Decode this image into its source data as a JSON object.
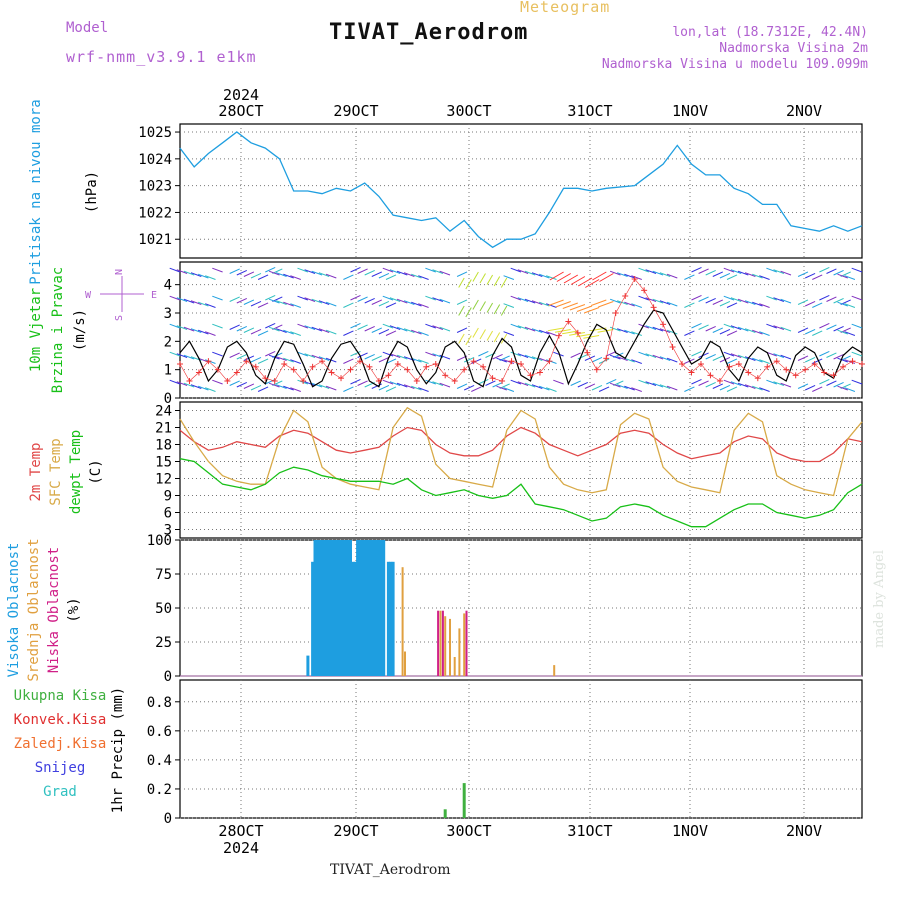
{
  "header": {
    "title": "TIVAT_Aerodrom",
    "subtitle": "Meteogram",
    "model_label": "Model",
    "model_name": "wrf-nmm_v3.9.1 e1km",
    "location": "lon,lat (18.7312E, 42.4N)",
    "elevation": "Nadmorska Visina 2m",
    "model_elevation": "Nadmorska Visina u modelu 109.099m"
  },
  "footer": {
    "station": "TIVAT_Aerodrom",
    "credit": "made by Angel"
  },
  "colors": {
    "pressure": "#1e9ee0",
    "wind_speed": "#000000",
    "gust": "#ee3333",
    "t2m": "#e04848",
    "sfc": "#d8aa48",
    "dewpt": "#18c018",
    "high_cloud": "#1e9ee0",
    "mid_cloud": "#e0a040",
    "low_cloud": "#d02088",
    "precip_total": "#40b040",
    "precip_conv": "#e03030"
  },
  "chart_data": [
    {
      "type": "line",
      "name": "pressure",
      "ylabel_lines": [
        "Pritisak na nivou mora",
        "(hPa)"
      ],
      "x_day_ticks": [
        "28OCT",
        "29OCT",
        "30OCT",
        "31OCT",
        "1NOV",
        "2NOV"
      ],
      "year": "2024",
      "yticks": [
        1021,
        1022,
        1023,
        1024,
        1025
      ],
      "ylim": [
        1020.3,
        1025.3
      ],
      "xlim": [
        0,
        144
      ],
      "x": [
        0,
        3,
        6,
        9,
        12,
        15,
        18,
        21,
        24,
        27,
        30,
        33,
        36,
        39,
        42,
        45,
        48,
        51,
        54,
        57,
        60,
        63,
        66,
        69,
        72,
        75,
        78,
        81,
        84,
        87,
        90,
        96,
        102,
        105,
        108,
        111,
        114,
        117,
        120,
        123,
        126,
        129,
        132,
        135,
        138,
        141,
        144
      ],
      "values": [
        1024.4,
        1023.7,
        1024.2,
        1024.6,
        1025.0,
        1024.6,
        1024.4,
        1024.0,
        1022.8,
        1022.8,
        1022.7,
        1022.9,
        1022.8,
        1023.1,
        1022.6,
        1021.9,
        1021.8,
        1021.7,
        1021.8,
        1021.3,
        1021.7,
        1021.1,
        1020.7,
        1021.0,
        1021.0,
        1021.2,
        1022.0,
        1022.9,
        1022.9,
        1022.8,
        1022.9,
        1023.0,
        1023.8,
        1024.5,
        1023.8,
        1023.4,
        1023.4,
        1022.9,
        1022.7,
        1022.3,
        1022.3,
        1021.5,
        1021.4,
        1021.3,
        1021.5,
        1021.3,
        1021.5
      ]
    },
    {
      "type": "line",
      "name": "wind",
      "ylabel_lines": [
        "10m Vjetar",
        "Brzina i Pravac",
        "(m/s)"
      ],
      "compass": {
        "n": "N",
        "s": "S",
        "w": "W",
        "e": "E"
      },
      "yticks": [
        0,
        1,
        2,
        3,
        4
      ],
      "ylim": [
        0,
        4.8
      ],
      "xlim": [
        0,
        144
      ],
      "x": [
        0,
        2,
        4,
        6,
        8,
        10,
        12,
        14,
        16,
        18,
        20,
        22,
        24,
        26,
        28,
        30,
        32,
        34,
        36,
        38,
        40,
        42,
        44,
        46,
        48,
        50,
        52,
        54,
        56,
        58,
        60,
        62,
        64,
        66,
        68,
        70,
        72,
        74,
        76,
        78,
        80,
        82,
        84,
        86,
        88,
        90,
        92,
        94,
        96,
        98,
        100,
        102,
        104,
        106,
        108,
        110,
        112,
        114,
        116,
        118,
        120,
        122,
        124,
        126,
        128,
        130,
        132,
        134,
        136,
        138,
        140,
        142,
        144
      ],
      "series": [
        {
          "name": "speed",
          "values": [
            1.6,
            2.0,
            1.4,
            0.6,
            1.0,
            1.8,
            2.0,
            1.6,
            0.8,
            0.5,
            1.4,
            2.0,
            1.9,
            1.2,
            0.4,
            0.6,
            1.4,
            1.9,
            2.0,
            1.5,
            0.6,
            0.4,
            1.4,
            2.0,
            1.8,
            1.0,
            0.5,
            0.9,
            1.8,
            2.0,
            1.6,
            0.6,
            0.4,
            1.5,
            2.1,
            1.8,
            0.8,
            0.6,
            1.6,
            2.2,
            1.6,
            0.5,
            1.2,
            2.0,
            2.6,
            2.4,
            1.6,
            1.4,
            2.0,
            2.6,
            3.1,
            3.0,
            2.4,
            1.8,
            1.2,
            1.4,
            2.0,
            1.8,
            1.0,
            0.6,
            1.4,
            1.8,
            1.6,
            0.8,
            0.6,
            1.5,
            1.8,
            1.6,
            0.9,
            0.7,
            1.5,
            1.8,
            1.6
          ]
        },
        {
          "name": "gust",
          "values": [
            1.2,
            0.6,
            0.9,
            1.3,
            1.0,
            0.6,
            0.9,
            1.3,
            1.1,
            0.7,
            0.6,
            1.2,
            1.0,
            0.6,
            1.1,
            1.3,
            0.9,
            0.7,
            1.0,
            1.3,
            1.1,
            0.6,
            0.8,
            1.2,
            1.0,
            0.6,
            1.1,
            1.2,
            0.8,
            0.6,
            1.0,
            1.3,
            1.1,
            0.7,
            0.6,
            1.3,
            1.2,
            0.8,
            0.9,
            1.3,
            2.2,
            2.7,
            2.3,
            1.6,
            1.0,
            1.4,
            3.0,
            3.6,
            4.2,
            3.8,
            3.2,
            2.6,
            1.8,
            1.2,
            0.9,
            1.2,
            0.8,
            0.6,
            1.1,
            1.2,
            0.9,
            0.7,
            1.1,
            1.3,
            1.0,
            0.8,
            1.0,
            1.2,
            0.9,
            0.8,
            1.1,
            1.3,
            1.2
          ]
        }
      ]
    },
    {
      "type": "line",
      "name": "temperature",
      "ylabel_lines": [
        "2m Temp",
        "SFC Temp",
        "dewpt Temp",
        "(C)"
      ],
      "yticks": [
        3,
        6,
        9,
        12,
        15,
        18,
        21,
        24
      ],
      "ylim": [
        1.5,
        25.5
      ],
      "xlim": [
        0,
        144
      ],
      "x": [
        0,
        3,
        6,
        9,
        12,
        15,
        18,
        21,
        24,
        27,
        30,
        33,
        36,
        39,
        42,
        45,
        48,
        51,
        54,
        57,
        60,
        63,
        66,
        69,
        72,
        75,
        78,
        81,
        84,
        87,
        90,
        93,
        96,
        99,
        102,
        105,
        108,
        111,
        114,
        117,
        120,
        123,
        126,
        129,
        132,
        135,
        138,
        141,
        144
      ],
      "series": [
        {
          "name": "2m",
          "values": [
            20.5,
            18.5,
            17.0,
            17.5,
            18.5,
            18.0,
            17.5,
            19.5,
            20.5,
            20.0,
            18.5,
            17.0,
            16.5,
            17.0,
            17.5,
            19.5,
            21.0,
            20.5,
            18.0,
            16.5,
            16.0,
            16.0,
            17.0,
            19.5,
            21.0,
            20.0,
            18.0,
            17.0,
            16.0,
            17.0,
            18.0,
            20.0,
            20.5,
            20.0,
            18.0,
            16.5,
            15.5,
            16.0,
            16.5,
            18.5,
            19.5,
            19.0,
            16.5,
            15.5,
            15.0,
            15.0,
            16.5,
            19.0,
            18.5
          ]
        },
        {
          "name": "sfc",
          "values": [
            22.5,
            18.5,
            15.0,
            12.5,
            11.5,
            11.0,
            11.0,
            19.0,
            24.0,
            22.0,
            14.0,
            12.0,
            11.0,
            10.5,
            10.0,
            21.0,
            24.5,
            23.0,
            14.5,
            12.0,
            11.5,
            11.0,
            10.5,
            20.5,
            24.0,
            22.5,
            14.0,
            11.0,
            10.0,
            9.5,
            10.0,
            21.5,
            23.5,
            22.5,
            14.0,
            11.5,
            10.5,
            10.0,
            9.5,
            20.5,
            23.5,
            22.0,
            12.5,
            11.0,
            10.0,
            9.5,
            9.0,
            19.0,
            22.0
          ]
        },
        {
          "name": "dewpt",
          "values": [
            15.5,
            15.0,
            13.0,
            11.0,
            10.5,
            10.0,
            11.0,
            13.0,
            14.0,
            13.5,
            12.5,
            12.0,
            11.5,
            11.5,
            11.5,
            11.0,
            12.0,
            10.0,
            9.0,
            9.5,
            10.0,
            9.0,
            8.5,
            9.0,
            11.0,
            7.5,
            7.0,
            6.5,
            5.5,
            4.5,
            5.0,
            7.0,
            7.5,
            7.0,
            5.5,
            4.5,
            3.5,
            3.5,
            5.0,
            6.5,
            7.5,
            7.5,
            6.0,
            5.5,
            5.0,
            5.5,
            6.5,
            9.5,
            11.0
          ]
        }
      ]
    },
    {
      "type": "bar",
      "name": "cloud_cover",
      "ylabel_lines": [
        "Visoka Oblacnost",
        "Srednja Oblacnost",
        "Niska Oblacnost",
        "(%)"
      ],
      "yticks": [
        0,
        25,
        50,
        75,
        100
      ],
      "ylim": [
        0,
        100
      ],
      "xlim": [
        0,
        144
      ],
      "series": [
        {
          "name": "high",
          "x": [
            27,
            28,
            28.5,
            29,
            29.5,
            30,
            30.5,
            31,
            31.5,
            32,
            32.5,
            33,
            33.5,
            34,
            34.5,
            35,
            35.5,
            36,
            36.5,
            37,
            37.5,
            38,
            38.5,
            39,
            39.5,
            40,
            40.5,
            41,
            41.5,
            42,
            42.5,
            43,
            44,
            44.5,
            45
          ],
          "values": [
            15,
            84,
            100,
            100,
            100,
            100,
            100,
            100,
            100,
            100,
            100,
            100,
            100,
            100,
            100,
            100,
            100,
            100,
            84,
            84,
            100,
            100,
            100,
            100,
            100,
            100,
            100,
            100,
            100,
            100,
            100,
            100,
            84,
            84,
            84
          ]
        },
        {
          "name": "mid",
          "x": [
            47,
            47.5,
            55,
            56,
            57,
            58,
            59,
            60,
            79
          ],
          "values": [
            80,
            18,
            48,
            44,
            42,
            14,
            35,
            46,
            8
          ]
        },
        {
          "name": "low",
          "x": [
            54.5,
            55.5,
            60.5
          ],
          "values": [
            48,
            48,
            48
          ]
        }
      ]
    },
    {
      "type": "bar",
      "name": "precipitation",
      "ylabel_lines": [
        "1hr Precip (mm)"
      ],
      "legend": [
        "Ukupna Kisa",
        "Konvek.Kisa",
        "Zaledj.Kisa",
        "Snijeg",
        "Grad"
      ],
      "legend_colors": [
        "#40b040",
        "#e03030",
        "#f07030",
        "#4040e0",
        "#30c0c0"
      ],
      "yticks": [
        0,
        0.2,
        0.4,
        0.6,
        0.8
      ],
      "ylim": [
        0,
        0.95
      ],
      "xlim": [
        0,
        144
      ],
      "series": [
        {
          "name": "total",
          "x": [
            56,
            60
          ],
          "values": [
            0.06,
            0.24
          ]
        }
      ]
    }
  ]
}
